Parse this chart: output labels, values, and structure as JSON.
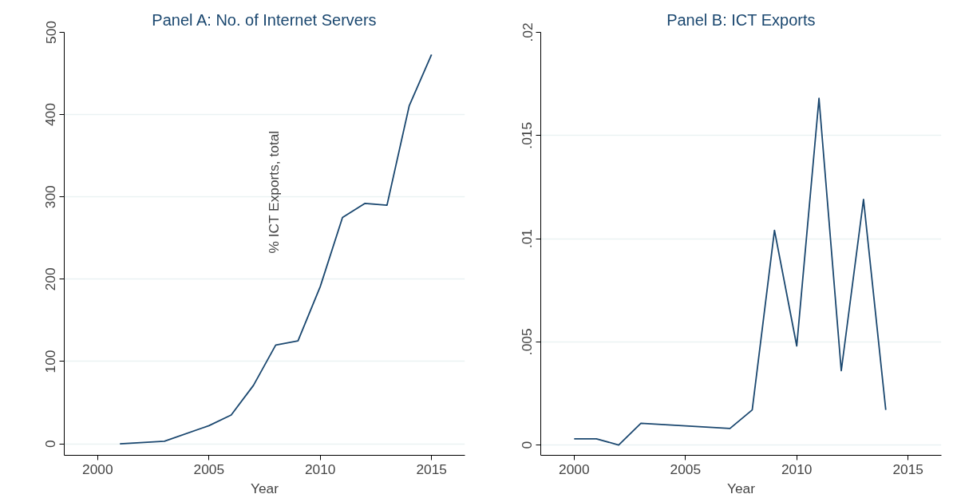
{
  "chart_data": [
    {
      "type": "line",
      "title": "Panel A: No. of Internet Servers",
      "xlabel": "Year",
      "x": [
        2001,
        2003,
        2005,
        2006,
        2007,
        2008,
        2009,
        2010,
        2011,
        2012,
        2013,
        2014,
        2015
      ],
      "series": [
        {
          "color": "#1a476f",
          "values": [
            0,
            3,
            22,
            35,
            71,
            120,
            125,
            191,
            275,
            292,
            290,
            411,
            473
          ]
        }
      ],
      "xlim": [
        1998.5,
        2016.5
      ],
      "ylim": [
        -14,
        500
      ],
      "xticks": [
        2000,
        2005,
        2010,
        2015
      ],
      "yticks": [
        0,
        100,
        200,
        300,
        400,
        500
      ],
      "grid": "y",
      "annotations": [
        "% ICT Exports, total"
      ]
    },
    {
      "type": "line",
      "title": "Panel B: ICT Exports",
      "xlabel": "Year",
      "x": [
        2000,
        2001,
        2002,
        2003,
        2007,
        2008,
        2009,
        2010,
        2011,
        2012,
        2013,
        2014
      ],
      "series": [
        {
          "color": "#1a476f",
          "values": [
            0.0003,
            0.0003,
            0,
            0.00105,
            0.0008,
            0.0017,
            0.0104,
            0.0048,
            0.0168,
            0.0036,
            0.0119,
            0.0017
          ]
        }
      ],
      "xlim": [
        1998.5,
        2016.5
      ],
      "ylim": [
        -0.0005,
        0.02
      ],
      "xticks": [
        2000,
        2005,
        2010,
        2015
      ],
      "yticks": [
        {
          "value": 0,
          "label": "0"
        },
        {
          "value": 0.005,
          "label": ".005"
        },
        {
          "value": 0.01,
          "label": ".01"
        },
        {
          "value": 0.015,
          "label": ".015"
        },
        {
          "value": 0.02,
          "label": ".02"
        }
      ],
      "grid": "y"
    }
  ]
}
